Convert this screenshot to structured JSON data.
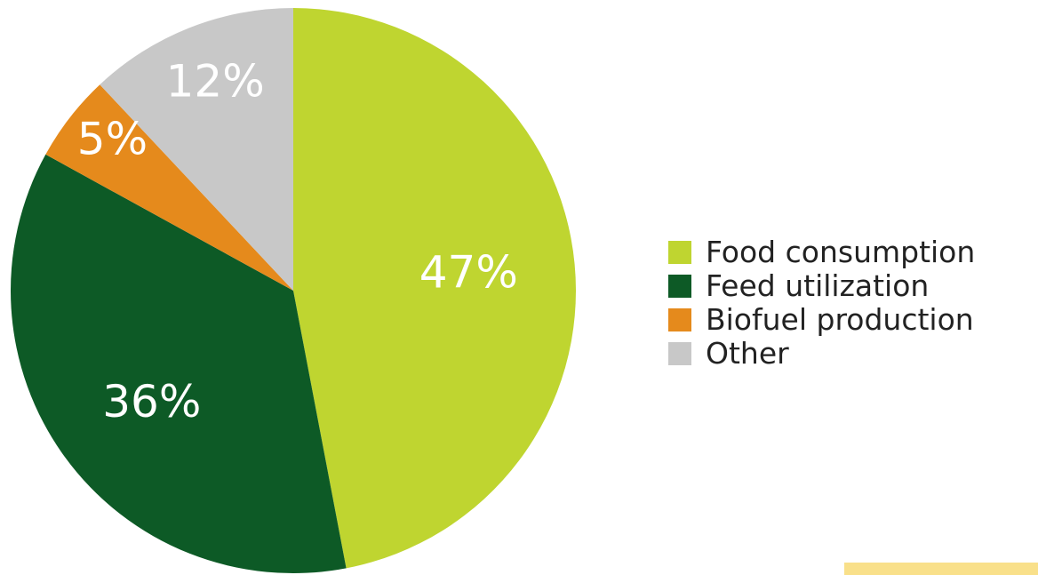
{
  "chart_data": {
    "type": "pie",
    "title": "",
    "slices": [
      {
        "label": "Food consumption",
        "value": 47,
        "display": "47%",
        "color": "#bfd530"
      },
      {
        "label": "Feed utilization",
        "value": 36,
        "display": "36%",
        "color": "#0d5a26"
      },
      {
        "label": "Biofuel production",
        "value": 5,
        "display": "5%",
        "color": "#e58a1c"
      },
      {
        "label": "Other",
        "value": 12,
        "display": "12%",
        "color": "#c8c8c8"
      }
    ],
    "legend_position": "right"
  },
  "legend": {
    "items": [
      {
        "label": "Food consumption",
        "color": "#bfd530"
      },
      {
        "label": "Feed utilization",
        "color": "#0d5a26"
      },
      {
        "label": "Biofuel production",
        "color": "#e58a1c"
      },
      {
        "label": "Other",
        "color": "#c8c8c8"
      }
    ]
  }
}
